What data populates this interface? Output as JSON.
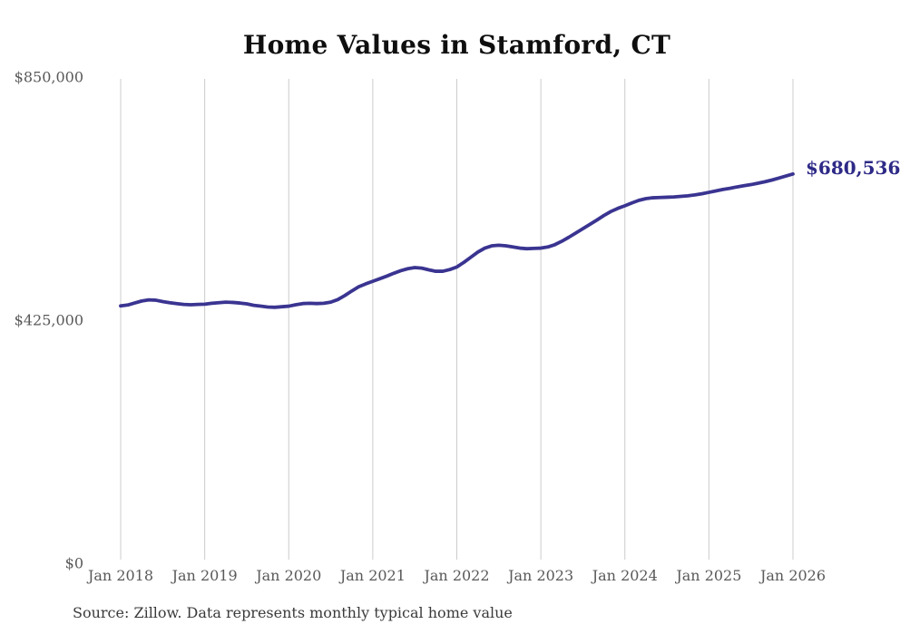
{
  "title": "Home Values in Stamford, CT",
  "source_note": "Source: Zillow. Data represents monthly typical home value",
  "colors": {
    "line": "#3a3491",
    "annotation_text": "#2e2a87",
    "grid": "#cccccc",
    "axis_text": "#595959",
    "title_text": "#0f0f0f",
    "source_text": "#3a3a3a",
    "background": "#ffffff"
  },
  "chart_data": {
    "type": "line",
    "title": "Home Values in Stamford, CT",
    "xlabel": "",
    "ylabel": "",
    "frequency": "monthly",
    "x_start": "Jan 2018",
    "x_end": "Jan 2026",
    "x_tick_labels": [
      "Jan 2018",
      "Jan 2019",
      "Jan 2020",
      "Jan 2021",
      "Jan 2022",
      "Jan 2023",
      "Jan 2024",
      "Jan 2025",
      "Jan 2026"
    ],
    "y_ticks": [
      {
        "label": "$0",
        "value": 0
      },
      {
        "label": "$425,000",
        "value": 425000
      },
      {
        "label": "$850,000",
        "value": 850000
      }
    ],
    "ylim": [
      0,
      850000
    ],
    "grid": "vertical-only",
    "legend": "none",
    "annotation": "$680,536",
    "series": [
      {
        "name": "Typical home value",
        "final_value": 680536,
        "values": [
          450000,
          451500,
          455000,
          458500,
          460500,
          460000,
          457500,
          455500,
          454000,
          452500,
          452000,
          452500,
          453000,
          454500,
          455500,
          456500,
          456000,
          455000,
          453500,
          451000,
          449500,
          448000,
          447500,
          448500,
          449500,
          452000,
          454000,
          454500,
          454000,
          454500,
          456500,
          461000,
          468000,
          476000,
          483500,
          488500,
          493000,
          497500,
          502000,
          507000,
          511500,
          515000,
          517000,
          516000,
          513000,
          510500,
          510500,
          513500,
          518000,
          526000,
          535000,
          544000,
          551000,
          555000,
          556000,
          555000,
          553000,
          551000,
          550000,
          550500,
          551000,
          553000,
          557000,
          563000,
          570000,
          577500,
          585000,
          592500,
          600000,
          608000,
          615000,
          620500,
          625000,
          630000,
          634500,
          637500,
          639000,
          639500,
          640000,
          640500,
          641500,
          642500,
          644000,
          646000,
          648500,
          651000,
          653500,
          655500,
          658000,
          660000,
          662000,
          664500,
          667000,
          670000,
          673500,
          677000,
          680536
        ]
      }
    ]
  }
}
